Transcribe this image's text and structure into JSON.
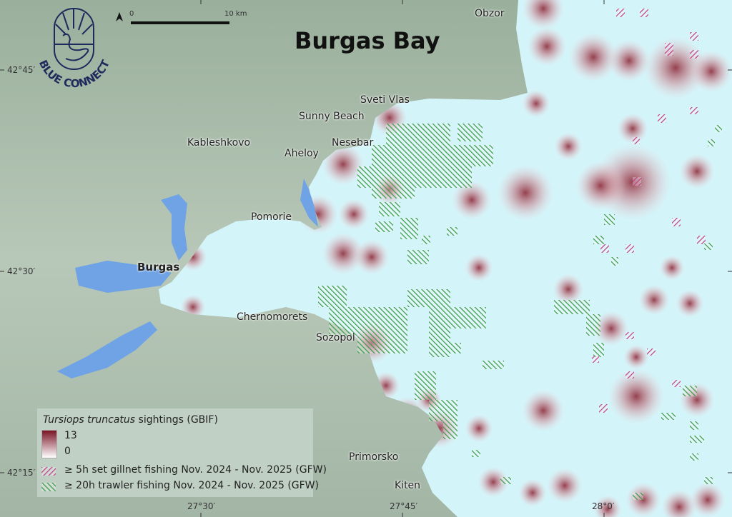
{
  "title": "Burgas Bay",
  "logo": {
    "text": "BLUE CONNECT",
    "color": "#1f2a5c"
  },
  "scale_bar": {
    "start": "0",
    "end": "10 km"
  },
  "north_arrow": "north-arrow-icon",
  "places": [
    {
      "name": "Obzor",
      "bold": false
    },
    {
      "name": "Sveti Vlas",
      "bold": false
    },
    {
      "name": "Sunny Beach",
      "bold": false
    },
    {
      "name": "Kableshkovo",
      "bold": false
    },
    {
      "name": "Aheloy",
      "bold": false
    },
    {
      "name": "Nesebar",
      "bold": false
    },
    {
      "name": "Pomorie",
      "bold": false
    },
    {
      "name": "Burgas",
      "bold": true
    },
    {
      "name": "Chernomorets",
      "bold": false
    },
    {
      "name": "Sozopol",
      "bold": false
    },
    {
      "name": "Primorsko",
      "bold": false
    },
    {
      "name": "Kiten",
      "bold": false
    }
  ],
  "graticule": {
    "lat": [
      "42°45′",
      "42°30′",
      "42°15′"
    ],
    "lon": [
      "27°30′",
      "27°45′",
      "28°0′"
    ]
  },
  "legend": {
    "heat_title_italic": "Tursiops truncatus",
    "heat_title_rest": " sightings (GBIF)",
    "max": "13",
    "min": "0",
    "gillnet": "≥ 5h set gillnet fishing Nov. 2024 - Nov. 2025 (GFW)",
    "trawler": "≥ 20h trawler fishing Nov. 2024 - Nov. 2025 (GFW)"
  },
  "colors": {
    "sea": "#d3f5fa",
    "land": "#a9bcaa",
    "lake": "#6fa3e6",
    "heat_max": "#7a1424",
    "gillnet": "#c0408a",
    "trawler": "#3a9a46"
  }
}
